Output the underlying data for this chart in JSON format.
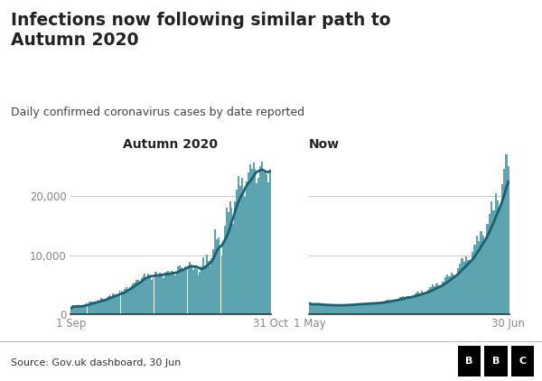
{
  "title": "Infections now following similar path to\nAutumn 2020",
  "subtitle": "Daily confirmed coronavirus cases by date reported",
  "source": "Source: Gov.uk dashboard, 30 Jun",
  "panel1_label": "Autumn 2020",
  "panel2_label": "Now",
  "bar_color": "#5ba4b0",
  "line_color": "#1a6070",
  "bg_color": "#ffffff",
  "footer_bg": "#f0f0f0",
  "grid_color": "#cccccc",
  "text_color": "#222222",
  "tick_color": "#888888",
  "ylim": [
    0,
    27000
  ],
  "yticks": [
    0,
    10000,
    20000
  ],
  "yticklabels": [
    "0",
    "10,000",
    "20,000"
  ],
  "autumn2020_daily": [
    1062,
    1534,
    1295,
    1434,
    1497,
    1295,
    1200,
    1487,
    1752,
    2021,
    1715,
    2094,
    2145,
    1869,
    1922,
    2205,
    2530,
    2312,
    2726,
    2613,
    2316,
    2651,
    3105,
    3330,
    3014,
    3530,
    3395,
    2944,
    3500,
    3991,
    4044,
    3773,
    4326,
    4651,
    4134,
    4649,
    4968,
    5265,
    5395,
    5787,
    5798,
    5389,
    6178,
    6568,
    6914,
    6179,
    6874,
    6620,
    5765,
    6178,
    7143,
    7108,
    6432,
    6956,
    6855,
    6177,
    6634,
    7143,
    7350,
    6900,
    7296,
    7143,
    6500,
    6956,
    8033,
    8200,
    8012,
    7646,
    8033,
    7450,
    8300,
    8872,
    8461,
    7542,
    7972,
    7594,
    6534,
    7162,
    8090,
    9560,
    8261,
    10065,
    8980,
    8134,
    9530,
    11012,
    14401,
    12600,
    12961,
    11045,
    9834,
    12401,
    14890,
    17960,
    17261,
    19065,
    17980,
    15234,
    19030,
    21012,
    23401,
    21600,
    22961,
    21045,
    19834,
    22401,
    23890,
    25260,
    24561,
    25665,
    24480,
    22134,
    23030,
    25012,
    25801,
    23900,
    24461,
    23645,
    22334,
    24001
  ],
  "now_daily": [
    1800,
    1600,
    1700,
    1750,
    1650,
    1550,
    1500,
    1480,
    1520,
    1600,
    1580,
    1560,
    1540,
    1420,
    1500,
    1580,
    1600,
    1620,
    1700,
    1650,
    1580,
    1680,
    1750,
    1820,
    1780,
    1860,
    1820,
    1700,
    1820,
    1950,
    1980,
    1870,
    2050,
    2020,
    1920,
    2150,
    2350,
    2450,
    2300,
    2520,
    2480,
    2350,
    2650,
    2900,
    3050,
    2850,
    3100,
    3000,
    2800,
    3200,
    3600,
    3800,
    3500,
    3950,
    3750,
    3500,
    4100,
    4600,
    5000,
    4700,
    5200,
    4900,
    4600,
    5500,
    6200,
    6800,
    6400,
    7100,
    6700,
    6300,
    7800,
    8600,
    9400,
    8800,
    9800,
    9200,
    8700,
    10500,
    11800,
    13200,
    12400,
    14100,
    13200,
    12400,
    15200,
    17000,
    19000,
    17500,
    20500,
    19200,
    18000,
    22000,
    24500,
    27500,
    25000,
    0,
    0,
    0
  ]
}
